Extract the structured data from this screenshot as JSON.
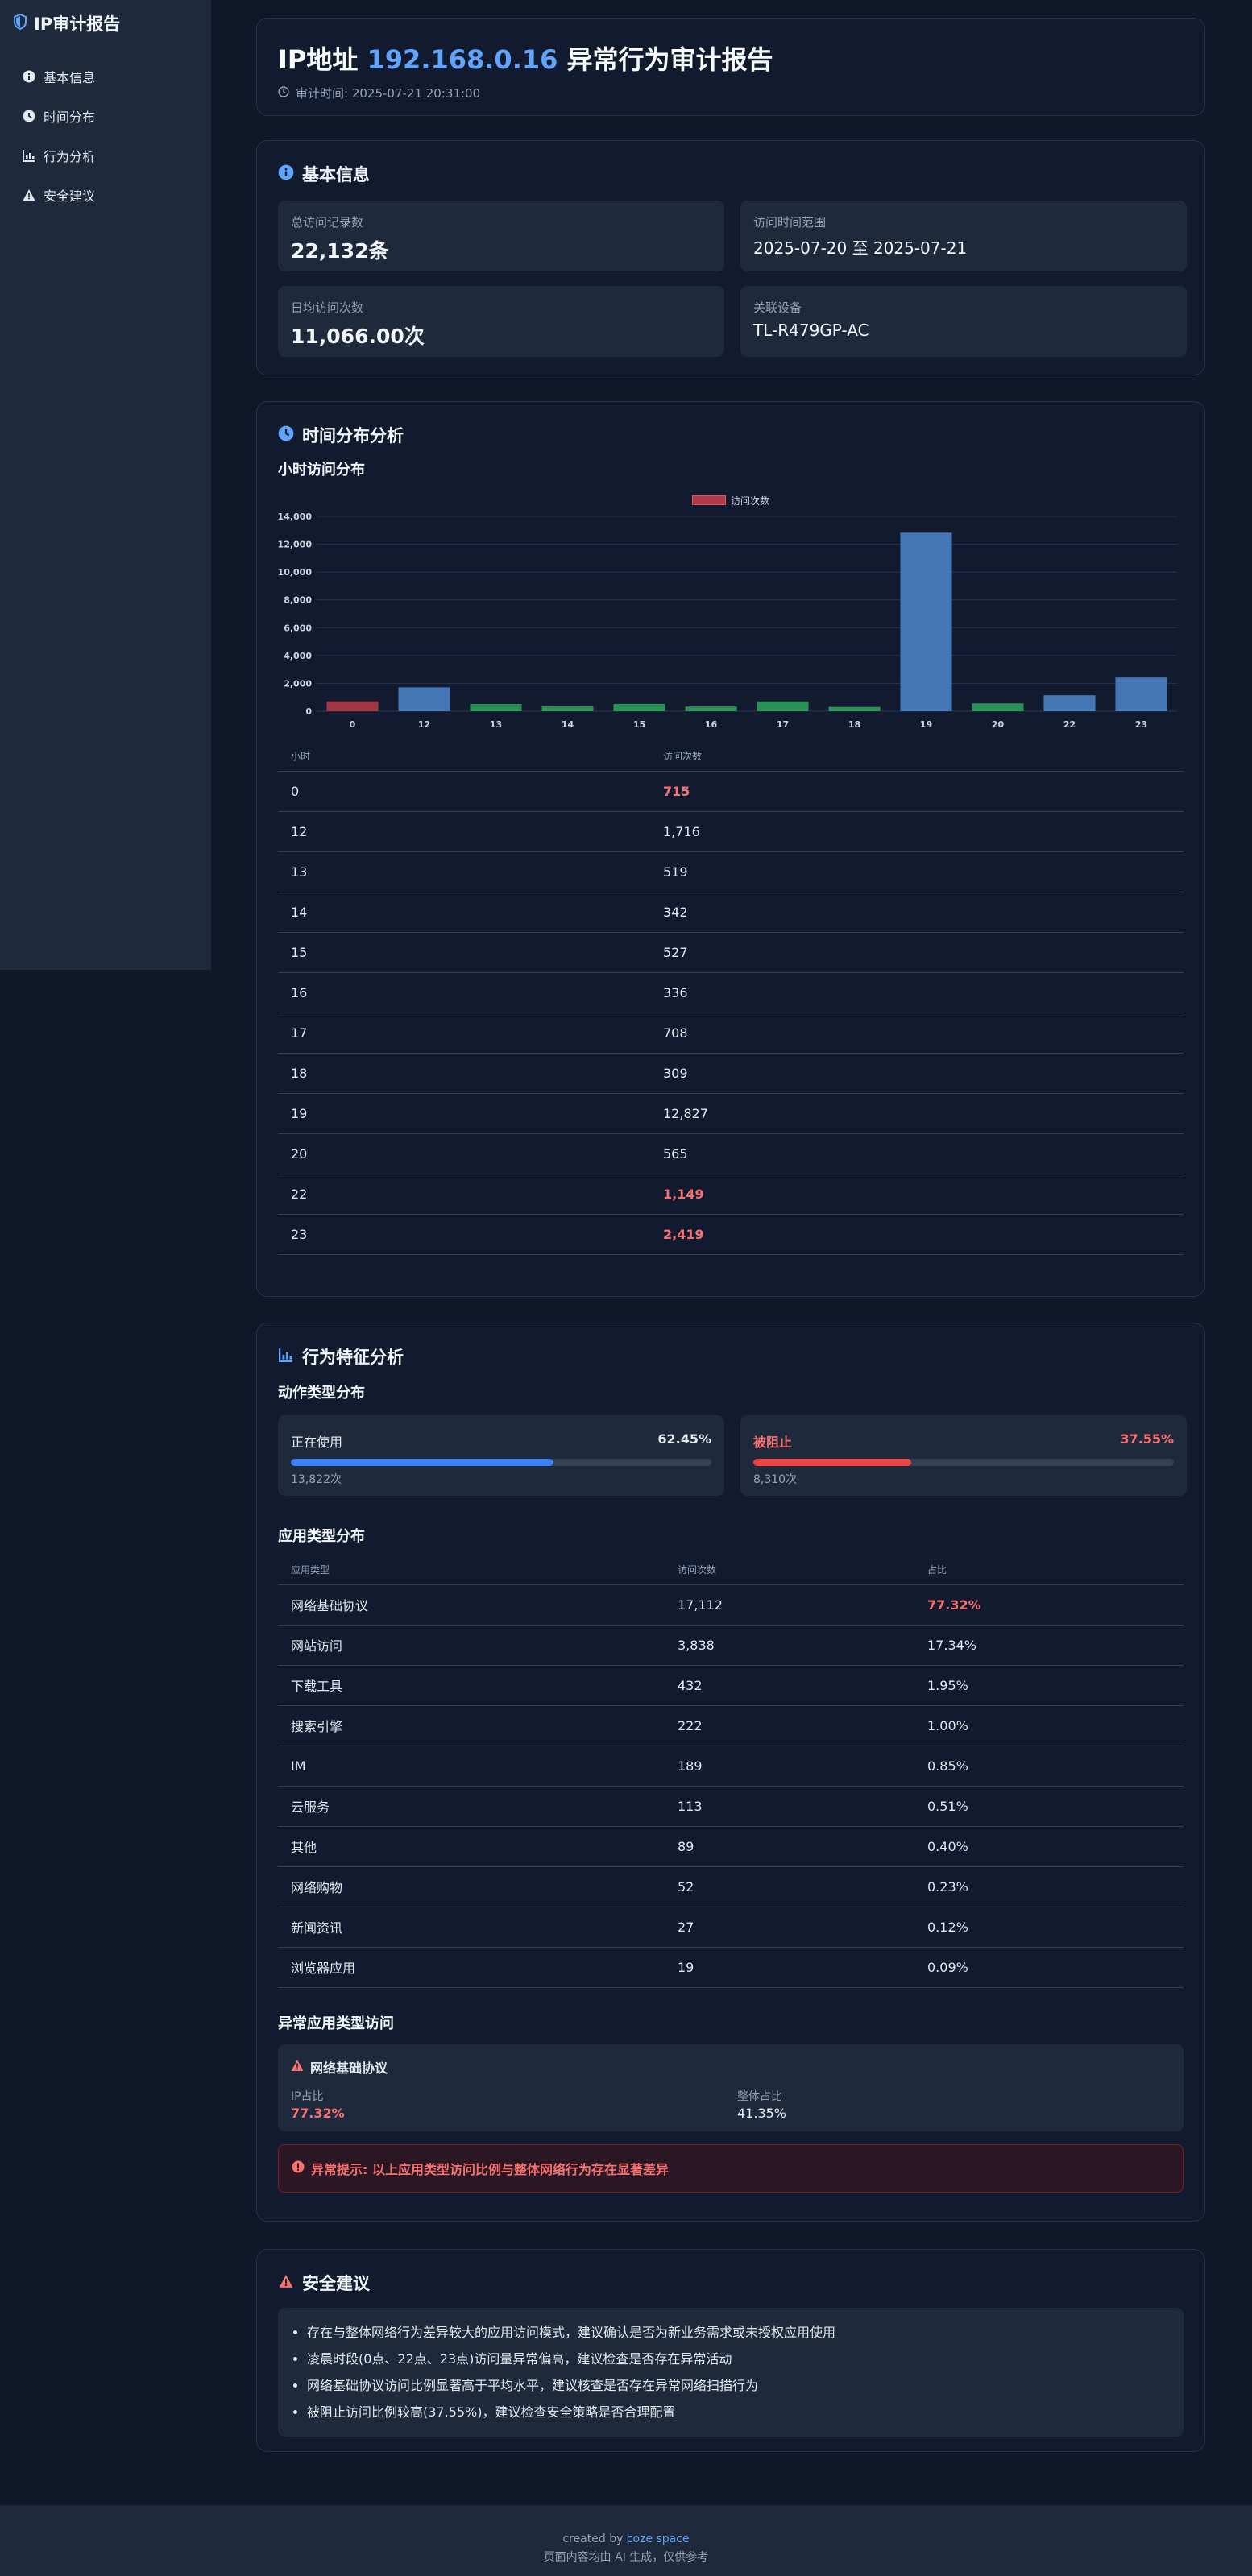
{
  "sidebar": {
    "title": "IP审计报告",
    "items": [
      {
        "label": "基本信息",
        "icon": "info-icon"
      },
      {
        "label": "时间分布",
        "icon": "clock-icon"
      },
      {
        "label": "行为分析",
        "icon": "chart-icon"
      },
      {
        "label": "安全建议",
        "icon": "warning-icon"
      }
    ]
  },
  "header": {
    "title_prefix": "IP地址",
    "ip": "192.168.0.16",
    "title_suffix": "异常行为审计报告",
    "audit_time": "审计时间: 2025-07-21 20:31:00"
  },
  "basic_info": {
    "title": "基本信息",
    "items": [
      {
        "label": "总访问记录数",
        "value": "22,132条"
      },
      {
        "label": "访问时间范围",
        "value": "2025-07-20 至 2025-07-21"
      },
      {
        "label": "日均访问次数",
        "value": "11,066.00次"
      },
      {
        "label": "关联设备",
        "value": "TL-R479GP-AC"
      }
    ]
  },
  "time_dist": {
    "title": "时间分布分析",
    "subtitle": "小时访问分布",
    "table_headers": [
      "小时",
      "访问次数"
    ],
    "rows": [
      {
        "hour": "0",
        "count": "715"
      },
      {
        "hour": "12",
        "count": "1,716"
      },
      {
        "hour": "13",
        "count": "519"
      },
      {
        "hour": "14",
        "count": "342"
      },
      {
        "hour": "15",
        "count": "527"
      },
      {
        "hour": "16",
        "count": "336"
      },
      {
        "hour": "17",
        "count": "708"
      },
      {
        "hour": "18",
        "count": "309"
      },
      {
        "hour": "19",
        "count": "12,827"
      },
      {
        "hour": "20",
        "count": "565"
      },
      {
        "hour": "22",
        "count": "1,149"
      },
      {
        "hour": "23",
        "count": "2,419"
      }
    ],
    "highlight_rows": [
      0,
      10,
      11
    ]
  },
  "chart_data": {
    "type": "bar",
    "categories": [
      "0",
      "12",
      "13",
      "14",
      "15",
      "16",
      "17",
      "18",
      "19",
      "20",
      "22",
      "23"
    ],
    "series": [
      {
        "name": "访问次数",
        "values": [
          715,
          1716,
          519,
          342,
          527,
          336,
          708,
          309,
          12827,
          565,
          1149,
          2419
        ]
      }
    ],
    "bar_colors": [
      "#b23a48",
      "#4a7fc4",
      "#2e9e5b",
      "#2e9e5b",
      "#2e9e5b",
      "#2e9e5b",
      "#2e9e5b",
      "#2e9e5b",
      "#4a7fc4",
      "#2e9e5b",
      "#4a7fc4",
      "#4a7fc4"
    ],
    "yticks": [
      "0",
      "2,000",
      "4,000",
      "6,000",
      "8,000",
      "10,000",
      "12,000",
      "14,000"
    ],
    "ylim": [
      0,
      14000
    ],
    "legend": "top",
    "grid": true,
    "title": "",
    "xlabel": "",
    "ylabel": ""
  },
  "behavior": {
    "title": "行为特征分析",
    "action_subtitle": "动作类型分布",
    "actions": [
      {
        "label": "正在使用",
        "percent": "62.45%",
        "count": "13,822次",
        "fraction": 0.6245,
        "color": "#3b82f6"
      },
      {
        "label": "被阻止",
        "percent": "37.55%",
        "count": "8,310次",
        "fraction": 0.3755,
        "color": "#ef4444"
      }
    ],
    "app_subtitle": "应用类型分布",
    "app_headers": [
      "应用类型",
      "访问次数",
      "占比"
    ],
    "apps": [
      {
        "type": "网络基础协议",
        "count": "17,112",
        "ratio": "77.32%"
      },
      {
        "type": "网站访问",
        "count": "3,838",
        "ratio": "17.34%"
      },
      {
        "type": "下载工具",
        "count": "432",
        "ratio": "1.95%"
      },
      {
        "type": "搜索引擎",
        "count": "222",
        "ratio": "1.00%"
      },
      {
        "type": "IM",
        "count": "189",
        "ratio": "0.85%"
      },
      {
        "type": "云服务",
        "count": "113",
        "ratio": "0.51%"
      },
      {
        "type": "其他",
        "count": "89",
        "ratio": "0.40%"
      },
      {
        "type": "网络购物",
        "count": "52",
        "ratio": "0.23%"
      },
      {
        "type": "新闻资讯",
        "count": "27",
        "ratio": "0.12%"
      },
      {
        "type": "浏览器应用",
        "count": "19",
        "ratio": "0.09%"
      }
    ],
    "anomaly_subtitle": "异常应用类型访问",
    "anomaly": {
      "name": "网络基础协议",
      "ip_label": "IP占比",
      "ip_value": "77.32%",
      "overall_label": "整体占比",
      "overall_value": "41.35%"
    },
    "alert": "异常提示: 以上应用类型访问比例与整体网络行为存在显著差异"
  },
  "suggestions": {
    "title": "安全建议",
    "items": [
      "存在与整体网络行为差异较大的应用访问模式，建议确认是否为新业务需求或未授权应用使用",
      "凌晨时段(0点、22点、23点)访问量异常偏高，建议检查是否存在异常活动",
      "网络基础协议访问比例显著高于平均水平，建议核查是否存在异常网络扫描行为",
      "被阻止访问比例较高(37.55%)，建议检查安全策略是否合理配置"
    ]
  },
  "footer": {
    "created_by": "created by",
    "brand": "coze space",
    "note": "页面内容均由 AI 生成，仅供参考"
  },
  "colors": {
    "accent": "#60a5fa",
    "danger": "#f87171",
    "bg": "#0f1728",
    "card": "#111a2e"
  }
}
